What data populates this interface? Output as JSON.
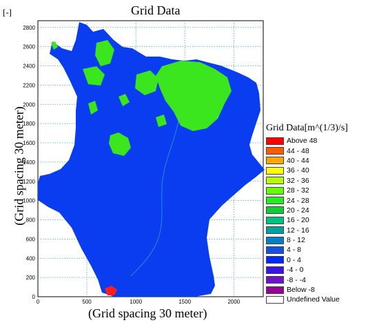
{
  "header": {
    "unit": "[-]",
    "title": "Grid Data"
  },
  "axes": {
    "xlabel": "(Grid spacing 30 meter)",
    "ylabel": "(Grid spacing 30 meter)",
    "x_ticks": [
      "0",
      "500",
      "1000",
      "1500",
      "2000"
    ],
    "y_ticks": [
      "0",
      "200",
      "400",
      "600",
      "800",
      "1000",
      "1200",
      "1400",
      "1600",
      "1800",
      "2000",
      "2200",
      "2400",
      "2600",
      "2800"
    ],
    "x_range": [
      0,
      2300
    ],
    "y_range": [
      0,
      2870
    ]
  },
  "legend": {
    "title": "Grid Data[m^(1/3)/s]",
    "items": [
      {
        "label": "Above 48",
        "color": "#ff0000"
      },
      {
        "label": "44 - 48",
        "color": "#ff5a00"
      },
      {
        "label": "40 - 44",
        "color": "#ffa500"
      },
      {
        "label": "36 - 40",
        "color": "#ffff00"
      },
      {
        "label": "32 - 36",
        "color": "#b4ff00"
      },
      {
        "label": "28 - 32",
        "color": "#66ff00"
      },
      {
        "label": "24 - 28",
        "color": "#22ee22"
      },
      {
        "label": "20 - 24",
        "color": "#11cc33"
      },
      {
        "label": "16 - 20",
        "color": "#00c080"
      },
      {
        "label": "12 - 16",
        "color": "#00a0a0"
      },
      {
        "label": "8 - 12",
        "color": "#0080c8"
      },
      {
        "label": "4 -  8",
        "color": "#1450e6"
      },
      {
        "label": "0 -  4",
        "color": "#0028ff"
      },
      {
        "label": "-4 -  0",
        "color": "#3c14e0"
      },
      {
        "label": "-8 -  -4",
        "color": "#6e14c8"
      },
      {
        "label": "Below  -8",
        "color": "#960096"
      },
      {
        "label": "Undefined Value",
        "color": "#ffffff"
      }
    ]
  },
  "colors": {
    "region_main": "#0a3cf0",
    "region_veg": "#3ce61e",
    "grid_line": "#3ca0e6",
    "hotspot": "#ff1e1e"
  }
}
